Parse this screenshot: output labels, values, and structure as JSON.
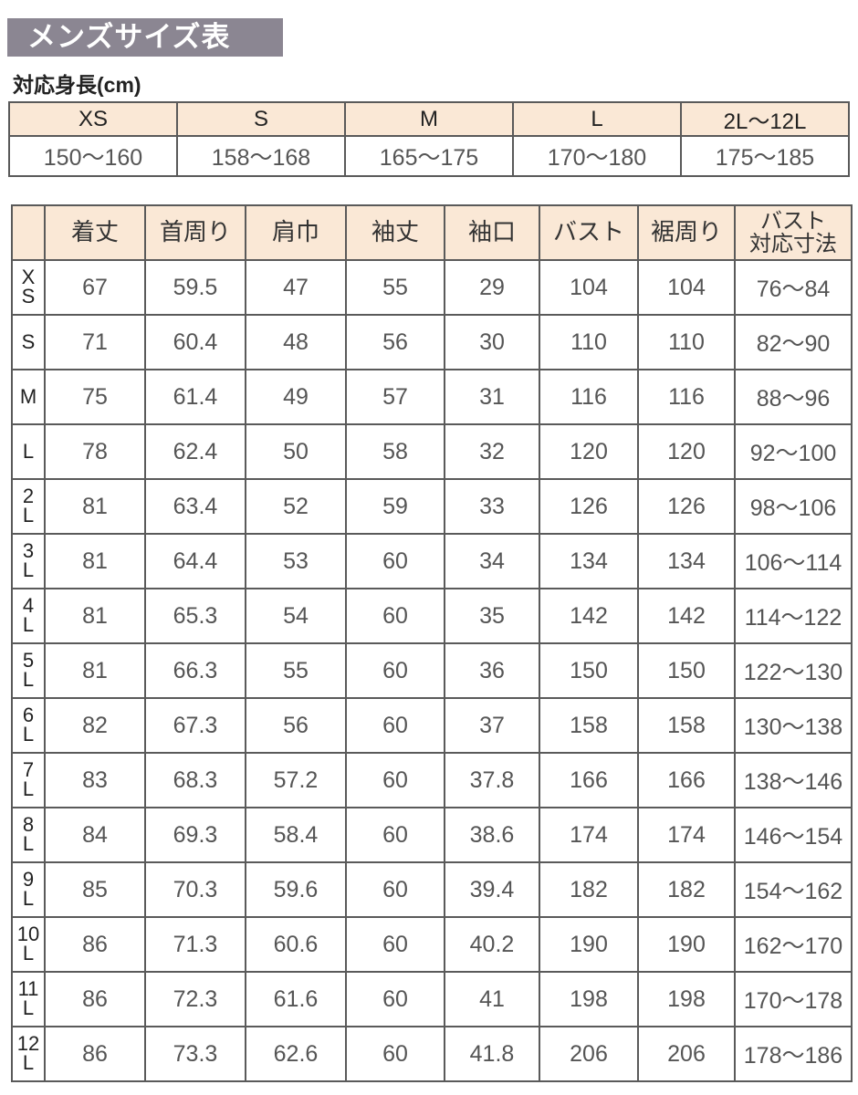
{
  "title": "メンズサイズ表",
  "height_section": {
    "label": "対応身長(cm)",
    "sizes": [
      "XS",
      "S",
      "M",
      "L",
      "2L〜12L"
    ],
    "ranges": [
      "150〜160",
      "158〜168",
      "165〜175",
      "170〜180",
      "175〜185"
    ]
  },
  "size_table": {
    "headers": [
      "",
      "着丈",
      "首周り",
      "肩巾",
      "袖丈",
      "袖口",
      "バスト",
      "裾周り",
      "バスト\n対応寸法"
    ],
    "rows": [
      {
        "size": "XS",
        "values": [
          "67",
          "59.5",
          "47",
          "55",
          "29",
          "104",
          "104",
          "76〜84"
        ]
      },
      {
        "size": "S",
        "values": [
          "71",
          "60.4",
          "48",
          "56",
          "30",
          "110",
          "110",
          "82〜90"
        ]
      },
      {
        "size": "M",
        "values": [
          "75",
          "61.4",
          "49",
          "57",
          "31",
          "116",
          "116",
          "88〜96"
        ]
      },
      {
        "size": "L",
        "values": [
          "78",
          "62.4",
          "50",
          "58",
          "32",
          "120",
          "120",
          "92〜100"
        ]
      },
      {
        "size": "2L",
        "values": [
          "81",
          "63.4",
          "52",
          "59",
          "33",
          "126",
          "126",
          "98〜106"
        ]
      },
      {
        "size": "3L",
        "values": [
          "81",
          "64.4",
          "53",
          "60",
          "34",
          "134",
          "134",
          "106〜114"
        ]
      },
      {
        "size": "4L",
        "values": [
          "81",
          "65.3",
          "54",
          "60",
          "35",
          "142",
          "142",
          "114〜122"
        ]
      },
      {
        "size": "5L",
        "values": [
          "81",
          "66.3",
          "55",
          "60",
          "36",
          "150",
          "150",
          "122〜130"
        ]
      },
      {
        "size": "6L",
        "values": [
          "82",
          "67.3",
          "56",
          "60",
          "37",
          "158",
          "158",
          "130〜138"
        ]
      },
      {
        "size": "7L",
        "values": [
          "83",
          "68.3",
          "57.2",
          "60",
          "37.8",
          "166",
          "166",
          "138〜146"
        ]
      },
      {
        "size": "8L",
        "values": [
          "84",
          "69.3",
          "58.4",
          "60",
          "38.6",
          "174",
          "174",
          "146〜154"
        ]
      },
      {
        "size": "9L",
        "values": [
          "85",
          "70.3",
          "59.6",
          "60",
          "39.4",
          "182",
          "182",
          "154〜162"
        ]
      },
      {
        "size": "10L",
        "values": [
          "86",
          "71.3",
          "60.6",
          "60",
          "40.2",
          "190",
          "190",
          "162〜170"
        ]
      },
      {
        "size": "11L",
        "values": [
          "86",
          "72.3",
          "61.6",
          "60",
          "41",
          "198",
          "198",
          "170〜178"
        ]
      },
      {
        "size": "12L",
        "values": [
          "86",
          "73.3",
          "62.6",
          "60",
          "41.8",
          "206",
          "206",
          "178〜186"
        ]
      }
    ]
  }
}
